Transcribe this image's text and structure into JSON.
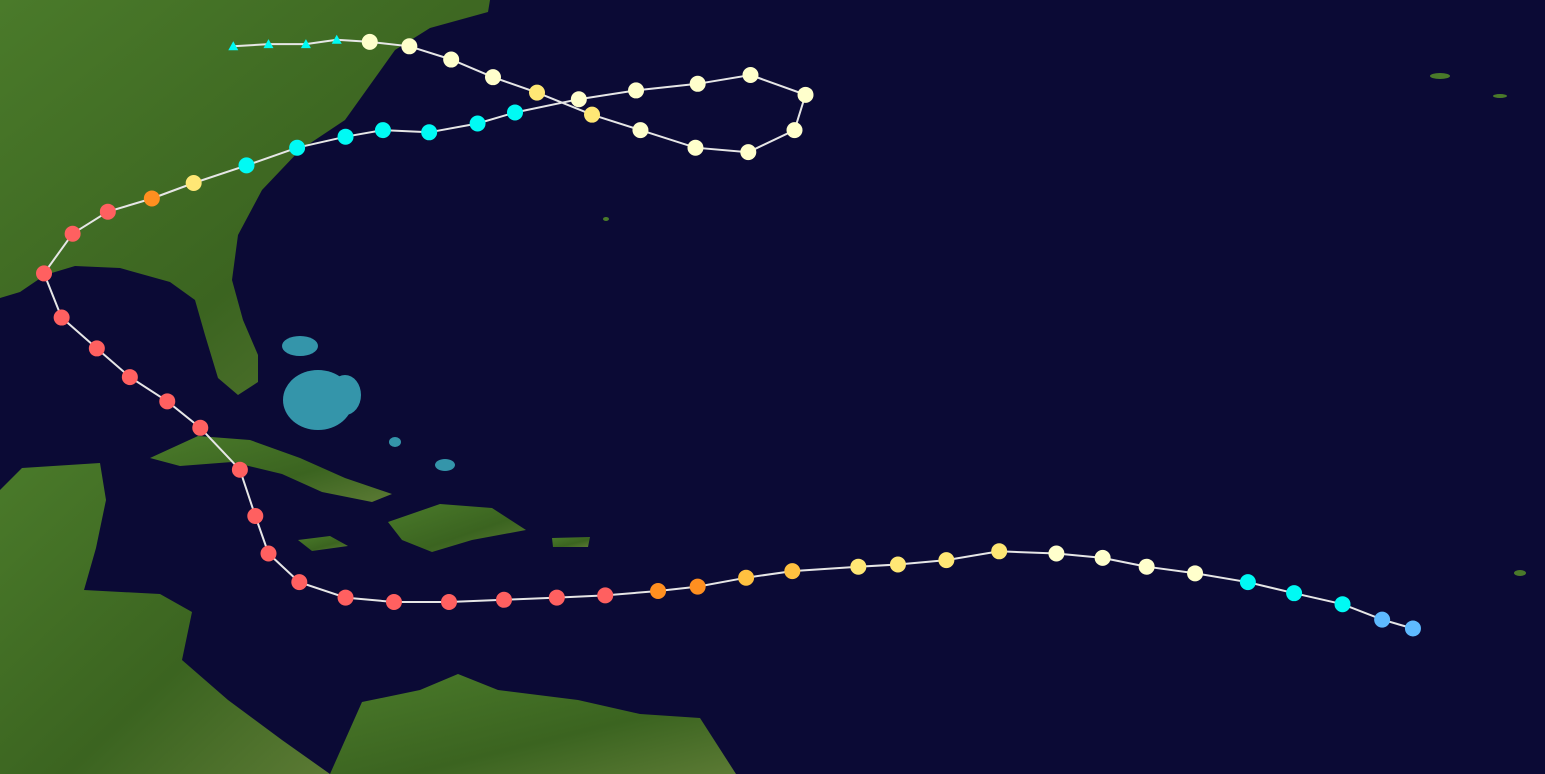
{
  "map_data": {
    "type": "storm-track",
    "projection": "equirectangular",
    "extent_lon": [
      -91.9,
      -21.7
    ],
    "extent_lat": [
      7.4,
      42.5
    ],
    "colors": {
      "ocean": "#0b0a35",
      "land": "#3f6a22",
      "shallow": "#3fb8c8",
      "track": "#e6e6e6",
      "TD": "#5ebaff",
      "TS": "#00faf4",
      "C1": "#ffffcc",
      "C2": "#ffe775",
      "C3": "#ffc140",
      "C4": "#ff8f20",
      "C5": "#ff6060",
      "EX": "#00faf4"
    },
    "marker_shapes": {
      "tropical": "circle",
      "extratropical": "triangle"
    },
    "track": [
      {
        "lon": -27.7,
        "lat": 14.0,
        "cat": "TD"
      },
      {
        "lon": -29.1,
        "lat": 14.4,
        "cat": "TD"
      },
      {
        "lon": -30.9,
        "lat": 15.1,
        "cat": "TS"
      },
      {
        "lon": -33.1,
        "lat": 15.6,
        "cat": "TS"
      },
      {
        "lon": -35.2,
        "lat": 16.1,
        "cat": "TS"
      },
      {
        "lon": -37.6,
        "lat": 16.5,
        "cat": "C1"
      },
      {
        "lon": -39.8,
        "lat": 16.8,
        "cat": "C1"
      },
      {
        "lon": -41.8,
        "lat": 17.2,
        "cat": "C1"
      },
      {
        "lon": -43.9,
        "lat": 17.4,
        "cat": "C1"
      },
      {
        "lon": -46.5,
        "lat": 17.5,
        "cat": "C2"
      },
      {
        "lon": -48.9,
        "lat": 17.1,
        "cat": "C2"
      },
      {
        "lon": -51.1,
        "lat": 16.9,
        "cat": "C2"
      },
      {
        "lon": -52.9,
        "lat": 16.8,
        "cat": "C2"
      },
      {
        "lon": -55.9,
        "lat": 16.6,
        "cat": "C3"
      },
      {
        "lon": -58.0,
        "lat": 16.3,
        "cat": "C3"
      },
      {
        "lon": -60.2,
        "lat": 15.9,
        "cat": "C4"
      },
      {
        "lon": -62.0,
        "lat": 15.7,
        "cat": "C4"
      },
      {
        "lon": -64.4,
        "lat": 15.5,
        "cat": "C5"
      },
      {
        "lon": -66.6,
        "lat": 15.4,
        "cat": "C5"
      },
      {
        "lon": -69.0,
        "lat": 15.3,
        "cat": "C5"
      },
      {
        "lon": -71.5,
        "lat": 15.2,
        "cat": "C5"
      },
      {
        "lon": -74.0,
        "lat": 15.2,
        "cat": "C5"
      },
      {
        "lon": -76.2,
        "lat": 15.4,
        "cat": "C5"
      },
      {
        "lon": -78.3,
        "lat": 16.1,
        "cat": "C5"
      },
      {
        "lon": -79.7,
        "lat": 17.4,
        "cat": "C5"
      },
      {
        "lon": -80.3,
        "lat": 19.1,
        "cat": "C5"
      },
      {
        "lon": -81.0,
        "lat": 21.2,
        "cat": "C5"
      },
      {
        "lon": -82.8,
        "lat": 23.1,
        "cat": "C5"
      },
      {
        "lon": -84.3,
        "lat": 24.3,
        "cat": "C5"
      },
      {
        "lon": -86.0,
        "lat": 25.4,
        "cat": "C5"
      },
      {
        "lon": -87.5,
        "lat": 26.7,
        "cat": "C5"
      },
      {
        "lon": -89.1,
        "lat": 28.1,
        "cat": "C5"
      },
      {
        "lon": -89.9,
        "lat": 30.1,
        "cat": "C5"
      },
      {
        "lon": -88.6,
        "lat": 31.9,
        "cat": "C5"
      },
      {
        "lon": -87.0,
        "lat": 32.9,
        "cat": "C5"
      },
      {
        "lon": -85.0,
        "lat": 33.5,
        "cat": "C4"
      },
      {
        "lon": -83.1,
        "lat": 34.2,
        "cat": "C2"
      },
      {
        "lon": -80.7,
        "lat": 35.0,
        "cat": "TS"
      },
      {
        "lon": -78.4,
        "lat": 35.8,
        "cat": "TS"
      },
      {
        "lon": -76.2,
        "lat": 36.3,
        "cat": "TS"
      },
      {
        "lon": -74.5,
        "lat": 36.6,
        "cat": "TS"
      },
      {
        "lon": -72.4,
        "lat": 36.5,
        "cat": "TS"
      },
      {
        "lon": -70.2,
        "lat": 36.9,
        "cat": "TS"
      },
      {
        "lon": -68.5,
        "lat": 37.4,
        "cat": "TS"
      },
      {
        "lon": -65.6,
        "lat": 38.0,
        "cat": "C1"
      },
      {
        "lon": -63.0,
        "lat": 38.4,
        "cat": "C1"
      },
      {
        "lon": -60.2,
        "lat": 38.7,
        "cat": "C1"
      },
      {
        "lon": -57.8,
        "lat": 39.1,
        "cat": "C1"
      },
      {
        "lon": -55.3,
        "lat": 38.2,
        "cat": "C1"
      },
      {
        "lon": -55.8,
        "lat": 36.6,
        "cat": "C1"
      },
      {
        "lon": -57.9,
        "lat": 35.6,
        "cat": "C1"
      },
      {
        "lon": -60.3,
        "lat": 35.8,
        "cat": "C1"
      },
      {
        "lon": -62.8,
        "lat": 36.6,
        "cat": "C1"
      },
      {
        "lon": -65.0,
        "lat": 37.3,
        "cat": "C2"
      },
      {
        "lon": -67.5,
        "lat": 38.3,
        "cat": "C2"
      },
      {
        "lon": -69.5,
        "lat": 39.0,
        "cat": "C1"
      },
      {
        "lon": -71.4,
        "lat": 39.8,
        "cat": "C1"
      },
      {
        "lon": -73.3,
        "lat": 40.4,
        "cat": "C1"
      },
      {
        "lon": -75.1,
        "lat": 40.6,
        "cat": "C1"
      },
      {
        "lon": -76.6,
        "lat": 40.7,
        "cat": "EX"
      },
      {
        "lon": -78.0,
        "lat": 40.5,
        "cat": "EX"
      },
      {
        "lon": -79.7,
        "lat": 40.5,
        "cat": "EX"
      },
      {
        "lon": -81.3,
        "lat": 40.4,
        "cat": "EX"
      }
    ]
  }
}
